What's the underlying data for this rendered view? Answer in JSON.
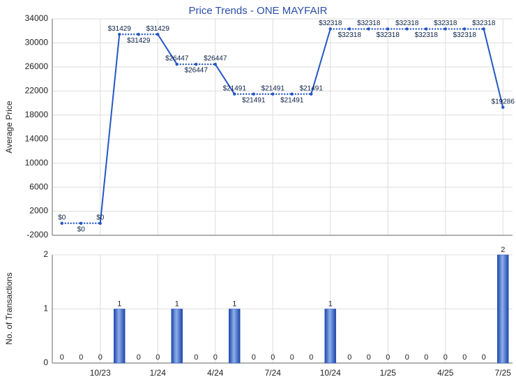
{
  "chart_data": [
    {
      "type": "line",
      "title": "Price Trends - ONE MAYFAIR",
      "y_label": "Average Price",
      "ylim": [
        -2000,
        34000
      ],
      "yticks": [
        -2000,
        2000,
        6000,
        10000,
        14000,
        18000,
        22000,
        26000,
        30000,
        34000
      ],
      "grid": true,
      "series": [
        {
          "name": "Average Price",
          "color": "#2457c5",
          "values": [
            0,
            0,
            0,
            31429,
            31429,
            31429,
            26447,
            26447,
            26447,
            21491,
            21491,
            21491,
            21491,
            21491,
            32318,
            32318,
            32318,
            32318,
            32318,
            32318,
            32318,
            32318,
            32318,
            19286
          ],
          "value_labels": [
            "$0",
            "$0",
            "$0",
            "$31429",
            "$31429",
            "$31429",
            "$26447",
            "$26447",
            "$26447",
            "$21491",
            "$21491",
            "$21491",
            "$21491",
            "$21491",
            "$32318",
            "$32318",
            "$32318",
            "$32318",
            "$32318",
            "$32318",
            "$32318",
            "$32318",
            "$32318",
            "$19286"
          ]
        }
      ]
    },
    {
      "type": "bar",
      "y_label": "No. of Transactions",
      "categories": [
        null,
        null,
        "10/23",
        null,
        null,
        "1/24",
        null,
        null,
        "4/24",
        null,
        null,
        "7/24",
        null,
        null,
        "10/24",
        null,
        null,
        "1/25",
        null,
        null,
        "4/25",
        null,
        null,
        "7/25"
      ],
      "values": [
        0,
        0,
        0,
        1,
        0,
        0,
        1,
        0,
        0,
        1,
        0,
        0,
        0,
        0,
        1,
        0,
        0,
        0,
        0,
        0,
        0,
        0,
        0,
        2
      ],
      "ylim": [
        0,
        2
      ],
      "yticks": [
        0,
        1,
        2
      ],
      "grid": true,
      "color": "#2457c5"
    }
  ]
}
